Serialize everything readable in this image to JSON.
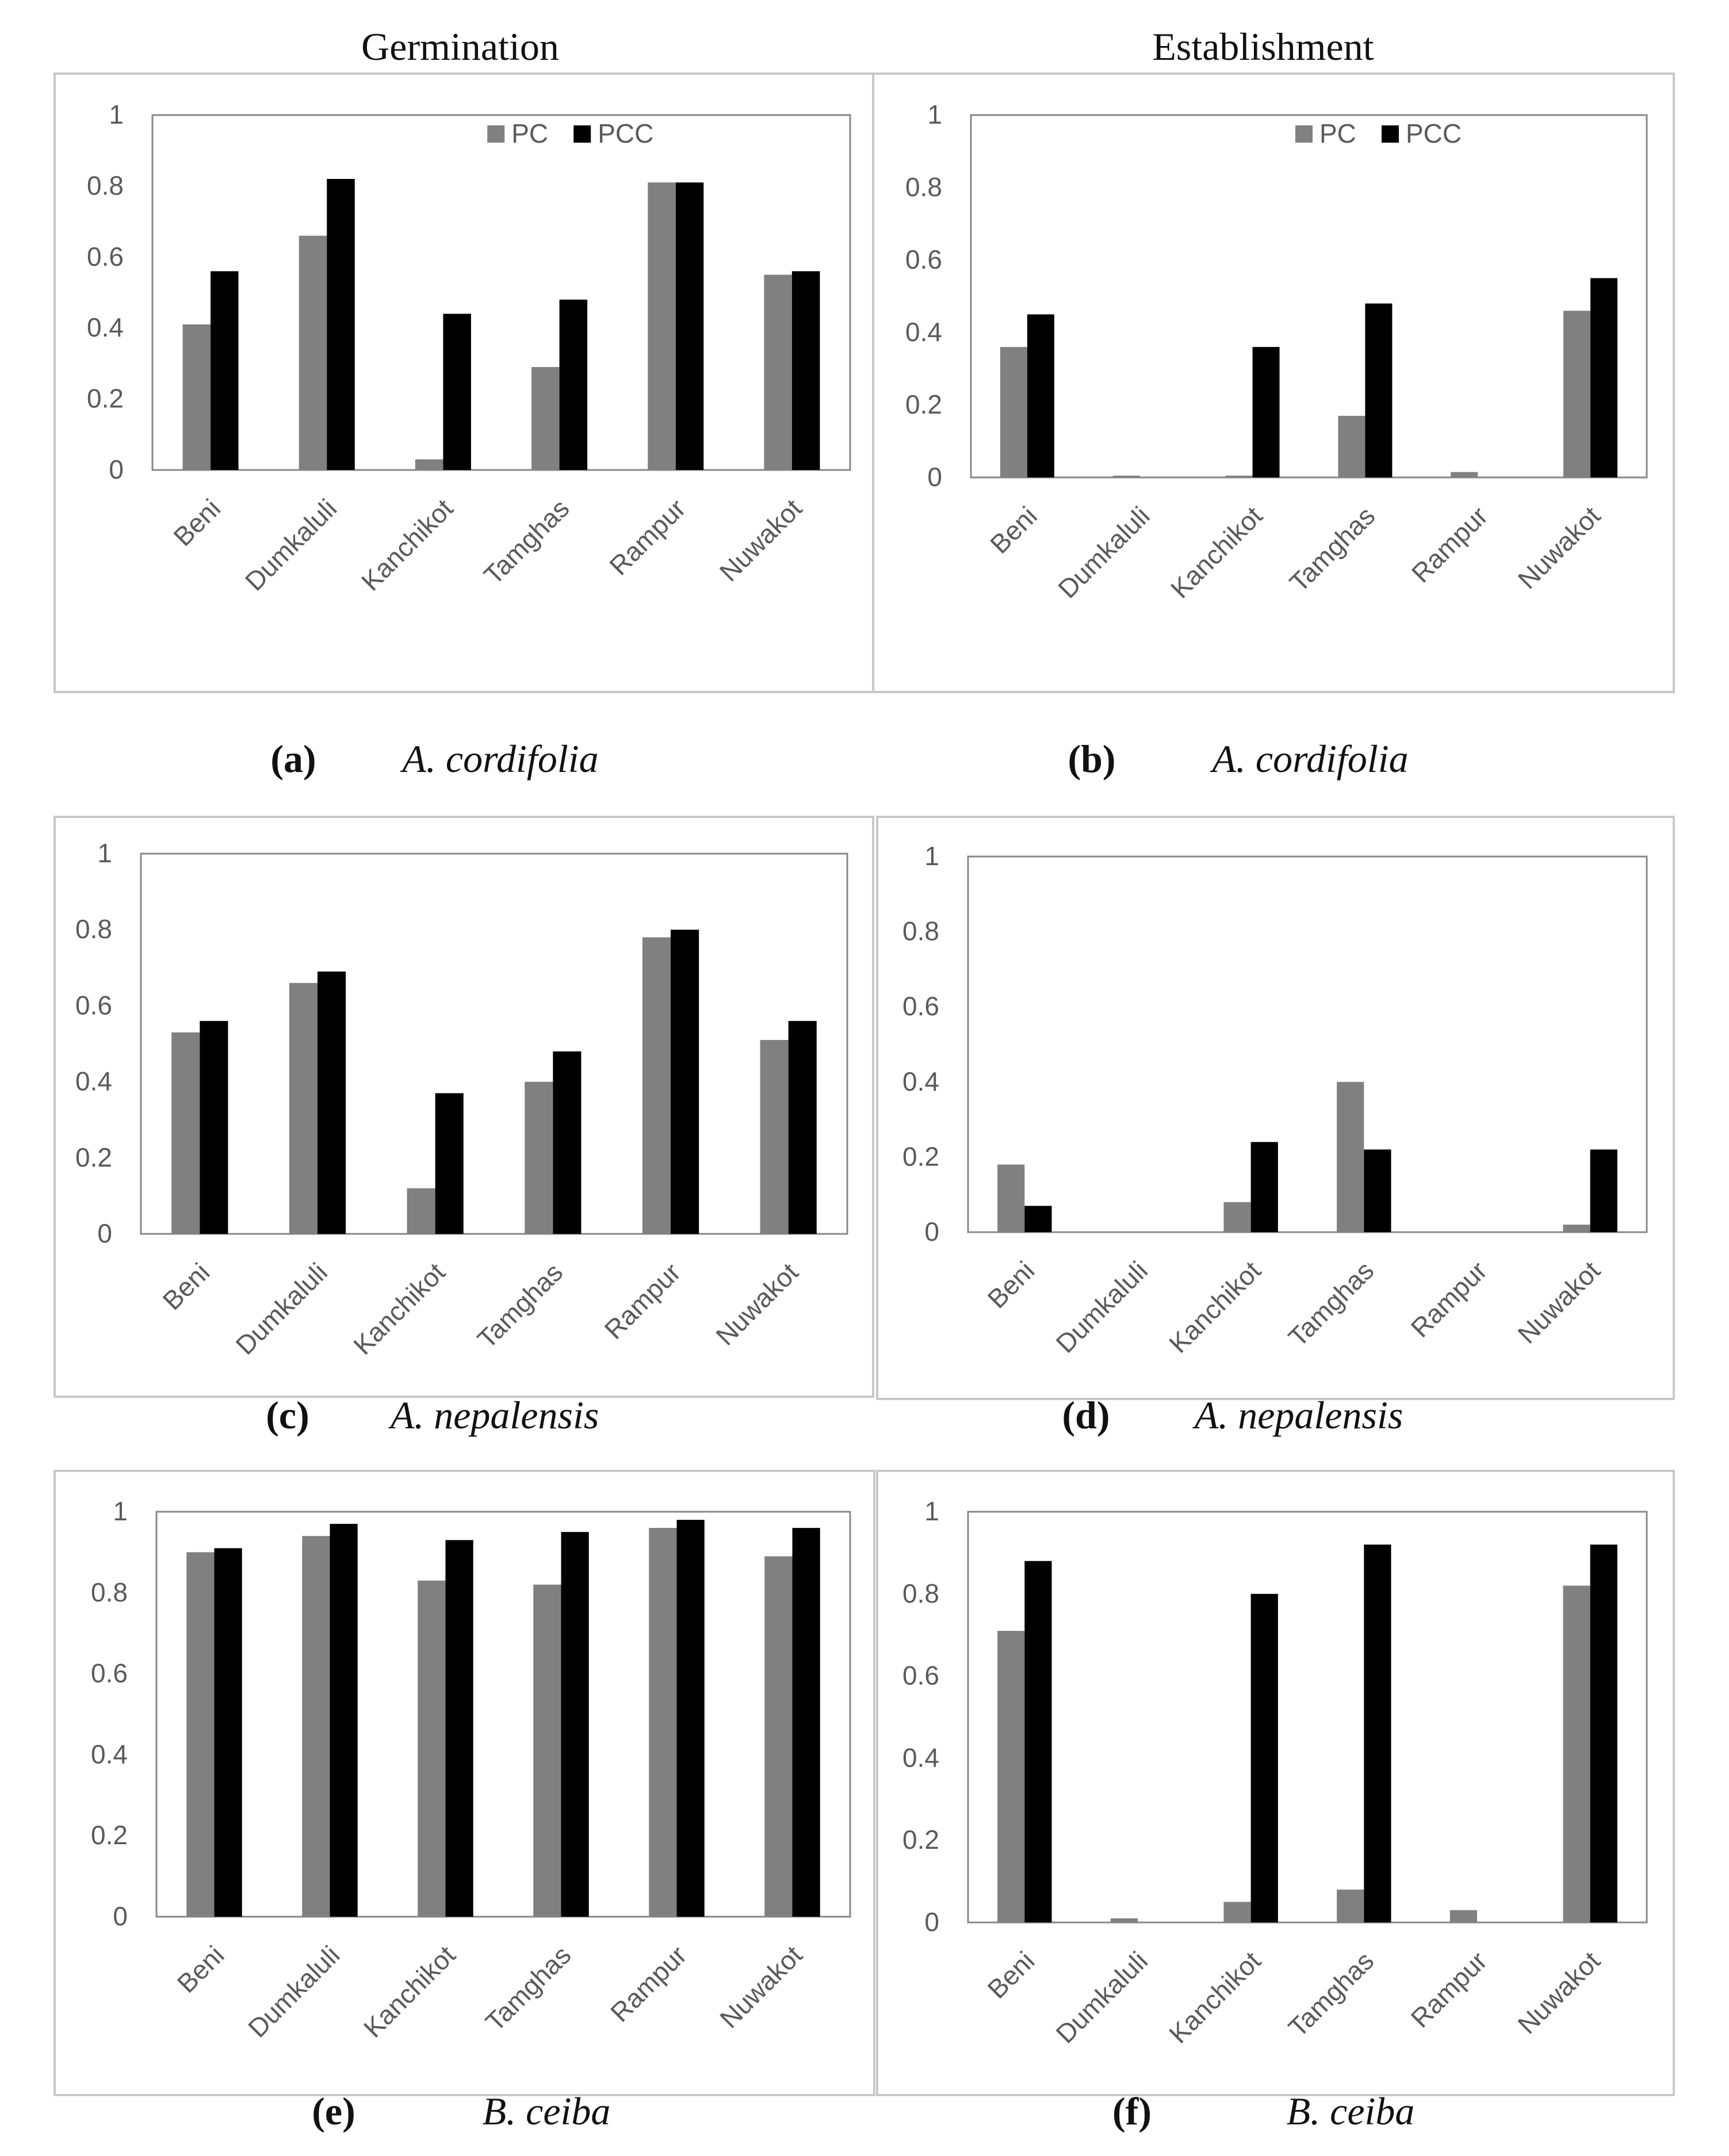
{
  "column_titles": {
    "left": "Germination",
    "right": "Establishment"
  },
  "legend": {
    "pc": "PC",
    "pcc": "PCC"
  },
  "colors": {
    "pc": "#808080",
    "pcc": "#000000",
    "frame": "#c8c8c8",
    "plot_border": "#888888",
    "axis": "#a0a0a0"
  },
  "chart_data": [
    {
      "type": "bar",
      "id": "a",
      "column": "Germination",
      "label": "(a)",
      "species": "A. cordifolia",
      "categories": [
        "Beni",
        "Dumkaluli",
        "Kanchikot",
        "Tamghas",
        "Rampur",
        "Nuwakot"
      ],
      "series": [
        {
          "name": "PC",
          "values": [
            0.41,
            0.66,
            0.03,
            0.29,
            0.81,
            0.55
          ]
        },
        {
          "name": "PCC",
          "values": [
            0.56,
            0.82,
            0.44,
            0.48,
            0.81,
            0.56
          ]
        }
      ],
      "ylim": [
        0,
        1
      ],
      "yticks": [
        "0",
        "0.2",
        "0.4",
        "0.6",
        "0.8",
        "1"
      ],
      "show_legend": true
    },
    {
      "type": "bar",
      "id": "b",
      "column": "Establishment",
      "label": "(b)",
      "species": "A. cordifolia",
      "categories": [
        "Beni",
        "Dumkaluli",
        "Kanchikot",
        "Tamghas",
        "Rampur",
        "Nuwakot"
      ],
      "series": [
        {
          "name": "PC",
          "values": [
            0.36,
            0.005,
            0.005,
            0.17,
            0.015,
            0.46
          ]
        },
        {
          "name": "PCC",
          "values": [
            0.45,
            0,
            0.36,
            0.48,
            0,
            0.55
          ]
        }
      ],
      "ylim": [
        0,
        1
      ],
      "yticks": [
        "0",
        "0.2",
        "0.4",
        "0.6",
        "0.8",
        "1"
      ],
      "show_legend": true
    },
    {
      "type": "bar",
      "id": "c",
      "column": "Germination",
      "label": "(c)",
      "species": "A. nepalensis",
      "categories": [
        "Beni",
        "Dumkaluli",
        "Kanchikot",
        "Tamghas",
        "Rampur",
        "Nuwakot"
      ],
      "series": [
        {
          "name": "PC",
          "values": [
            0.53,
            0.66,
            0.12,
            0.4,
            0.78,
            0.51
          ]
        },
        {
          "name": "PCC",
          "values": [
            0.56,
            0.69,
            0.37,
            0.48,
            0.8,
            0.56
          ]
        }
      ],
      "ylim": [
        0,
        1
      ],
      "yticks": [
        "0",
        "0.2",
        "0.4",
        "0.6",
        "0.8",
        "1"
      ],
      "show_legend": false
    },
    {
      "type": "bar",
      "id": "d",
      "column": "Establishment",
      "label": "(d)",
      "species": "A. nepalensis",
      "categories": [
        "Beni",
        "Dumkaluli",
        "Kanchikot",
        "Tamghas",
        "Rampur",
        "Nuwakot"
      ],
      "series": [
        {
          "name": "PC",
          "values": [
            0.18,
            0,
            0.08,
            0.4,
            0,
            0.02
          ]
        },
        {
          "name": "PCC",
          "values": [
            0.07,
            0,
            0.24,
            0.22,
            0,
            0.22
          ]
        }
      ],
      "ylim": [
        0,
        1
      ],
      "yticks": [
        "0",
        "0.2",
        "0.4",
        "0.6",
        "0.8",
        "1"
      ],
      "show_legend": false
    },
    {
      "type": "bar",
      "id": "e",
      "column": "Germination",
      "label": "(e)",
      "species": "B. ceiba",
      "categories": [
        "Beni",
        "Dumkaluli",
        "Kanchikot",
        "Tamghas",
        "Rampur",
        "Nuwakot"
      ],
      "series": [
        {
          "name": "PC",
          "values": [
            0.9,
            0.94,
            0.83,
            0.82,
            0.96,
            0.89
          ]
        },
        {
          "name": "PCC",
          "values": [
            0.91,
            0.97,
            0.93,
            0.95,
            0.98,
            0.96
          ]
        }
      ],
      "ylim": [
        0,
        1
      ],
      "yticks": [
        "0",
        "0.2",
        "0.4",
        "0.6",
        "0.8",
        "1"
      ],
      "show_legend": false
    },
    {
      "type": "bar",
      "id": "f",
      "column": "Establishment",
      "label": "(f)",
      "species": "B. ceiba",
      "categories": [
        "Beni",
        "Dumkaluli",
        "Kanchikot",
        "Tamghas",
        "Rampur",
        "Nuwakot"
      ],
      "series": [
        {
          "name": "PC",
          "values": [
            0.71,
            0.01,
            0.05,
            0.08,
            0.03,
            0.82
          ]
        },
        {
          "name": "PCC",
          "values": [
            0.88,
            0,
            0.8,
            0.92,
            0,
            0.92
          ]
        }
      ],
      "ylim": [
        0,
        1
      ],
      "yticks": [
        "0",
        "0.2",
        "0.4",
        "0.6",
        "0.8",
        "1"
      ],
      "show_legend": false
    }
  ]
}
